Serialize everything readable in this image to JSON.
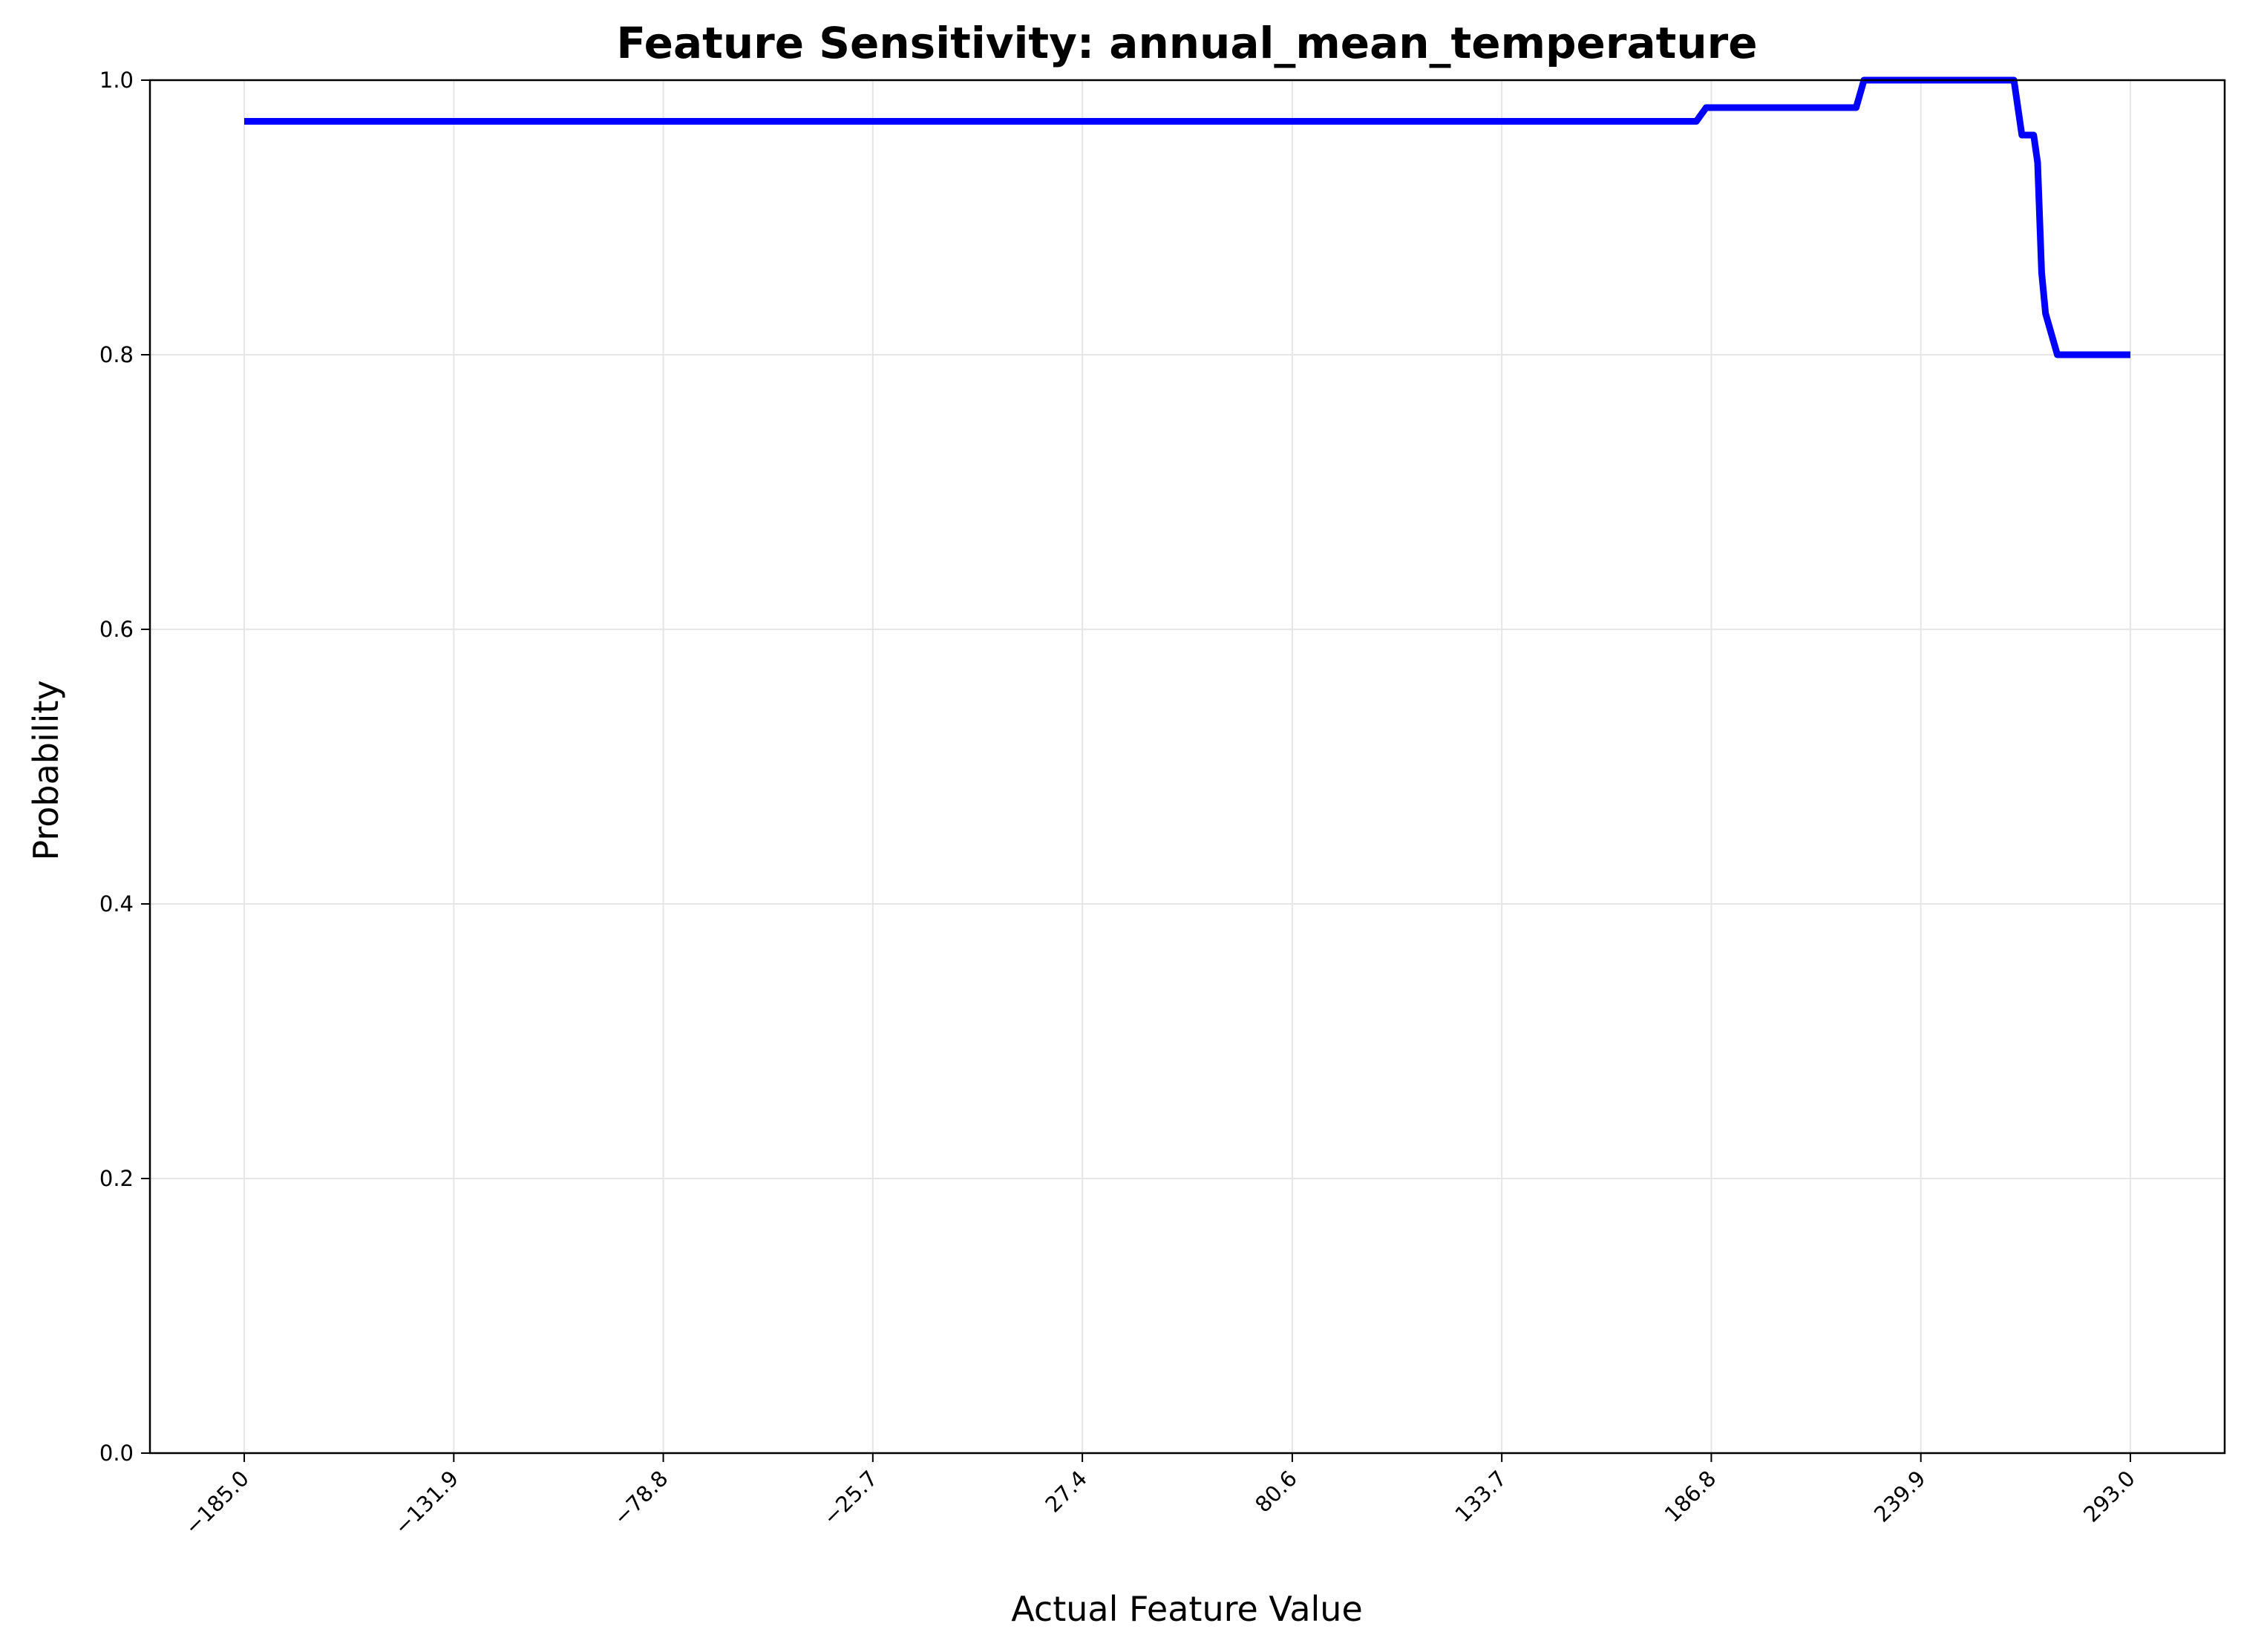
{
  "chart_data": {
    "type": "line",
    "title": "Feature Sensitivity: annual_mean_temperature",
    "xlabel": "Actual Feature Value",
    "ylabel": "Probability",
    "xlim": [
      -208.9,
      316.9
    ],
    "ylim": [
      0.0,
      1.0
    ],
    "grid": true,
    "x_ticks": [
      -185.0,
      -131.9,
      -78.8,
      -25.7,
      27.4,
      80.6,
      133.7,
      186.8,
      239.9,
      293.0
    ],
    "x_tick_labels": [
      "−185.0",
      "−131.9",
      "−78.8",
      "−25.7",
      "27.4",
      "80.6",
      "133.7",
      "186.8",
      "239.9",
      "293.0"
    ],
    "y_ticks": [
      0.0,
      0.2,
      0.4,
      0.6,
      0.8,
      1.0
    ],
    "y_tick_labels": [
      "0.0",
      "0.2",
      "0.4",
      "0.6",
      "0.8",
      "1.0"
    ],
    "line_color": "#0000ff",
    "series": [
      {
        "x": [
          -185.0,
          183.0,
          185.5,
          223.5,
          225.5,
          263.5,
          265.5,
          268.5,
          269.5,
          270.5,
          271.5,
          274.5,
          293.0
        ],
        "y": [
          0.97,
          0.97,
          0.98,
          0.98,
          1.0,
          1.0,
          0.96,
          0.96,
          0.94,
          0.86,
          0.83,
          0.8,
          0.8
        ]
      }
    ]
  }
}
